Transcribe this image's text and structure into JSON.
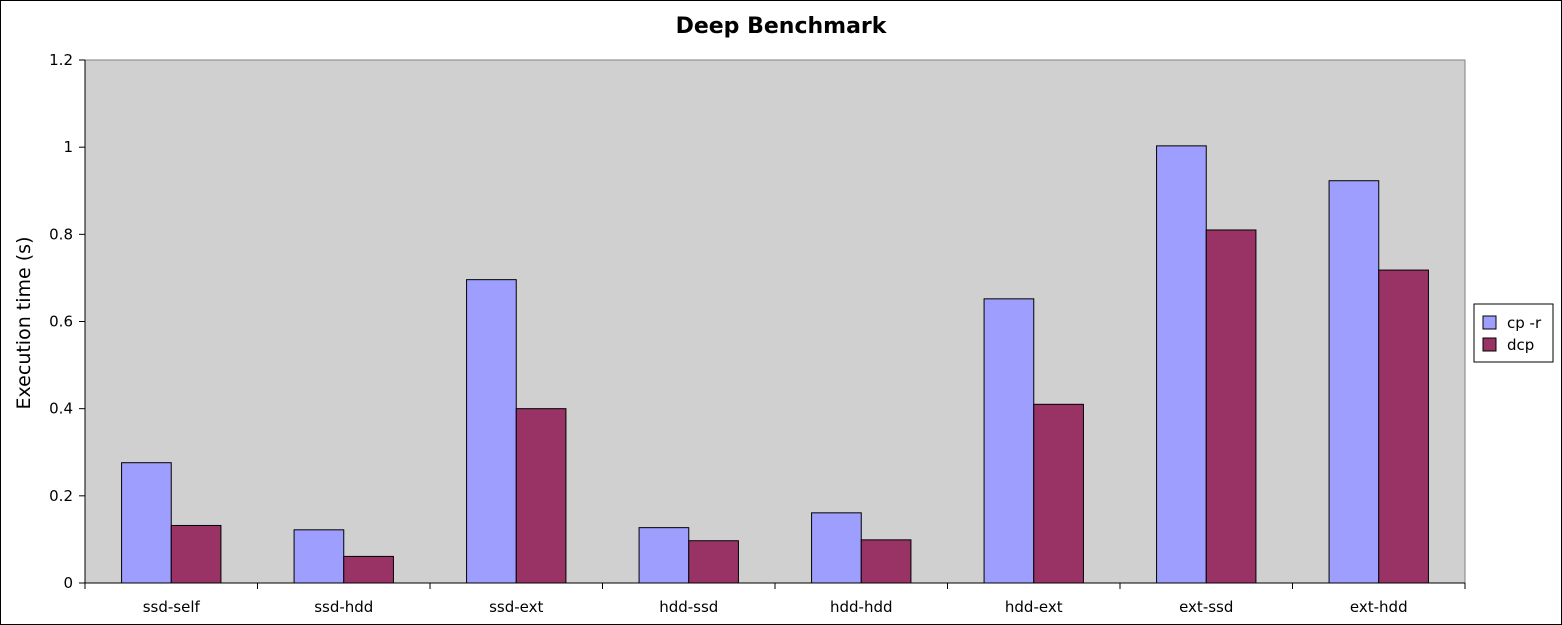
{
  "chart_data": {
    "type": "bar",
    "title": "Deep Benchmark",
    "xlabel": "",
    "ylabel": "Execution time (s)",
    "ylim": [
      0,
      1.2
    ],
    "yticks": [
      "0",
      "0.2",
      "0.4",
      "0.6",
      "0.8",
      "1",
      "1.2"
    ],
    "categories": [
      "ssd-self",
      "ssd-hdd",
      "ssd-ext",
      "hdd-ssd",
      "hdd-hdd",
      "hdd-ext",
      "ext-ssd",
      "ext-hdd"
    ],
    "series": [
      {
        "name": "cp -r",
        "color": "#9e9eff",
        "values": [
          0.276,
          0.122,
          0.696,
          0.127,
          0.161,
          0.652,
          1.003,
          0.923
        ]
      },
      {
        "name": "dcp",
        "color": "#993366",
        "values": [
          0.132,
          0.061,
          0.4,
          0.097,
          0.099,
          0.41,
          0.81,
          0.718
        ]
      }
    ],
    "grid": false,
    "plot_background": "#d0d0d0",
    "legend_position": "right"
  }
}
